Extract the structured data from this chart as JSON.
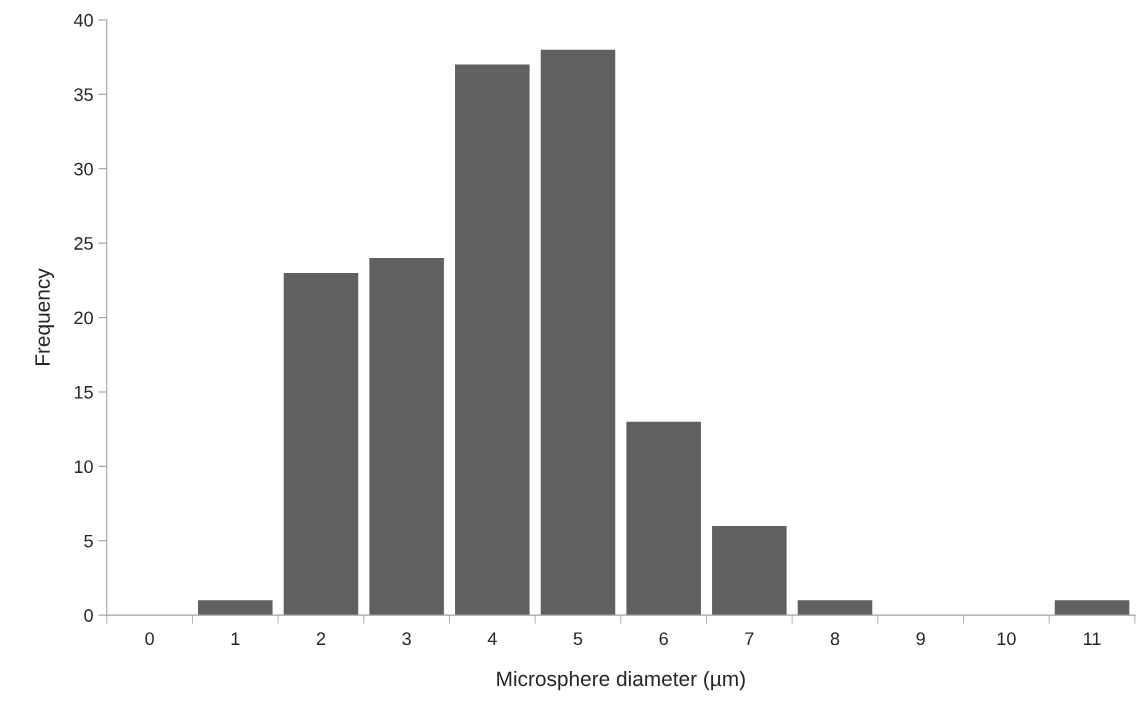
{
  "chart_data": {
    "type": "bar",
    "xlabel": "Microsphere diameter (µm)",
    "ylabel": "Frequency",
    "categories": [
      "0",
      "1",
      "2",
      "3",
      "4",
      "5",
      "6",
      "7",
      "8",
      "9",
      "10",
      "11"
    ],
    "values": [
      0,
      1,
      23,
      24,
      37,
      38,
      13,
      6,
      1,
      0,
      0,
      1
    ],
    "color": "#606060",
    "ylim": [
      0,
      40
    ],
    "yticks": [
      0,
      5,
      10,
      15,
      20,
      25,
      30,
      35,
      40
    ],
    "grid": false,
    "legend": false
  }
}
